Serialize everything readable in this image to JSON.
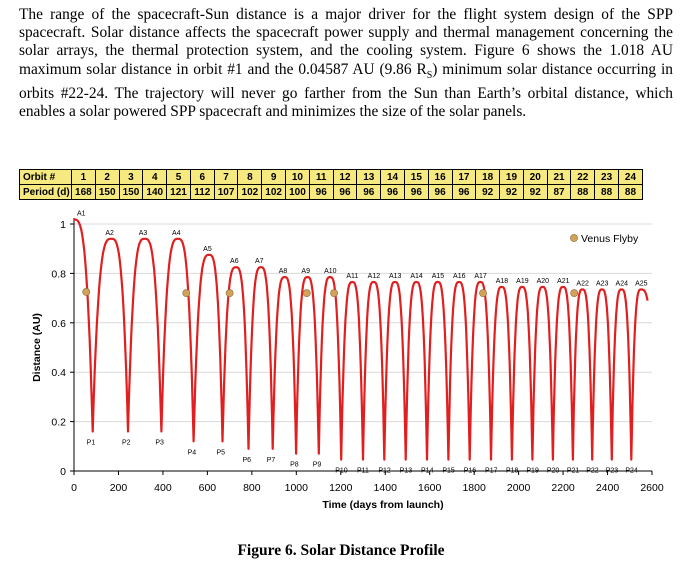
{
  "paragraph": {
    "before_subscript": "The range of the spacecraft-Sun distance is a major driver for the flight system design of the SPP spacecraft. Solar distance affects the spacecraft power supply and thermal management concerning the solar arrays, the thermal protection system, and the cooling system. Figure 6 shows the 1.018 AU maximum solar distance in orbit #1 and the 0.04587 AU (9.86 R",
    "subscript": "S",
    "after_subscript": ") minimum solar distance occurring in orbits #22-24. The trajectory will never go farther from the Sun than Earth’s orbital distance, which enables a solar powered SPP spacecraft and minimizes the size of the solar panels."
  },
  "orbit_table": {
    "row1_label": "Orbit #",
    "row2_label": "Period (d)",
    "orbits": [
      "1",
      "2",
      "3",
      "4",
      "5",
      "6",
      "7",
      "8",
      "9",
      "10",
      "11",
      "12",
      "13",
      "14",
      "15",
      "16",
      "17",
      "18",
      "19",
      "20",
      "21",
      "22",
      "23",
      "24"
    ],
    "periods": [
      "168",
      "150",
      "150",
      "140",
      "121",
      "112",
      "107",
      "102",
      "102",
      "100",
      "96",
      "96",
      "96",
      "96",
      "96",
      "96",
      "96",
      "92",
      "92",
      "92",
      "87",
      "88",
      "88",
      "88"
    ]
  },
  "chart_data": {
    "type": "line",
    "xlabel": "Time (days from launch)",
    "ylabel": "Distance (AU)",
    "xlim": [
      0,
      2600
    ],
    "ylim": [
      0,
      1.0
    ],
    "x_ticks": [
      "0",
      "200",
      "400",
      "600",
      "800",
      "1000",
      "1200",
      "1400",
      "1600",
      "1800",
      "2000",
      "2200",
      "2400",
      "2600"
    ],
    "y_ticks": [
      "0",
      "0.2",
      "0.4",
      "0.6",
      "0.8",
      "1"
    ],
    "grid": true,
    "legend_position": "top-right",
    "legend": [
      "Venus Flyby"
    ],
    "colors": {
      "trajectory": "#e02020",
      "grid": "#d9d9d9",
      "flyby": "#d4a15a",
      "table_fill": "#f6e97f"
    },
    "aphelia": [
      {
        "label": "A1",
        "x": 0,
        "y": 1.018
      },
      {
        "label": "A2",
        "x": 168,
        "y": 0.94
      },
      {
        "label": "A3",
        "x": 318,
        "y": 0.94
      },
      {
        "label": "A4",
        "x": 468,
        "y": 0.94
      },
      {
        "label": "A5",
        "x": 608,
        "y": 0.875
      },
      {
        "label": "A6",
        "x": 729,
        "y": 0.825
      },
      {
        "label": "A7",
        "x": 841,
        "y": 0.825
      },
      {
        "label": "A8",
        "x": 948,
        "y": 0.785
      },
      {
        "label": "A9",
        "x": 1050,
        "y": 0.785
      },
      {
        "label": "A10",
        "x": 1152,
        "y": 0.785
      },
      {
        "label": "A11",
        "x": 1252,
        "y": 0.765
      },
      {
        "label": "A12",
        "x": 1348,
        "y": 0.765
      },
      {
        "label": "A13",
        "x": 1444,
        "y": 0.765
      },
      {
        "label": "A14",
        "x": 1540,
        "y": 0.765
      },
      {
        "label": "A15",
        "x": 1636,
        "y": 0.765
      },
      {
        "label": "A16",
        "x": 1732,
        "y": 0.765
      },
      {
        "label": "A17",
        "x": 1828,
        "y": 0.765
      },
      {
        "label": "A18",
        "x": 1924,
        "y": 0.745
      },
      {
        "label": "A19",
        "x": 2016,
        "y": 0.745
      },
      {
        "label": "A20",
        "x": 2108,
        "y": 0.745
      },
      {
        "label": "A21",
        "x": 2200,
        "y": 0.745
      },
      {
        "label": "A22",
        "x": 2287,
        "y": 0.735
      },
      {
        "label": "A23",
        "x": 2375,
        "y": 0.735
      },
      {
        "label": "A24",
        "x": 2463,
        "y": 0.735
      },
      {
        "label": "A25",
        "x": 2551,
        "y": 0.735
      }
    ],
    "perihelia": [
      {
        "label": "P1",
        "x": 84,
        "y": 0.16
      },
      {
        "label": "P2",
        "x": 243,
        "y": 0.16
      },
      {
        "label": "P3",
        "x": 393,
        "y": 0.16
      },
      {
        "label": "P4",
        "x": 538,
        "y": 0.12
      },
      {
        "label": "P5",
        "x": 668,
        "y": 0.12
      },
      {
        "label": "P6",
        "x": 785,
        "y": 0.09
      },
      {
        "label": "P7",
        "x": 894,
        "y": 0.09
      },
      {
        "label": "P8",
        "x": 999,
        "y": 0.07
      },
      {
        "label": "P9",
        "x": 1101,
        "y": 0.07
      },
      {
        "label": "P10",
        "x": 1202,
        "y": 0.046
      },
      {
        "label": "P11",
        "x": 1300,
        "y": 0.046
      },
      {
        "label": "P12",
        "x": 1396,
        "y": 0.046
      },
      {
        "label": "P13",
        "x": 1492,
        "y": 0.046
      },
      {
        "label": "P14",
        "x": 1588,
        "y": 0.046
      },
      {
        "label": "P15",
        "x": 1684,
        "y": 0.046
      },
      {
        "label": "P16",
        "x": 1780,
        "y": 0.046
      },
      {
        "label": "P17",
        "x": 1876,
        "y": 0.046
      },
      {
        "label": "P18",
        "x": 1970,
        "y": 0.046
      },
      {
        "label": "P19",
        "x": 2062,
        "y": 0.046
      },
      {
        "label": "P20",
        "x": 2154,
        "y": 0.046
      },
      {
        "label": "P21",
        "x": 2244,
        "y": 0.046
      },
      {
        "label": "P22",
        "x": 2331,
        "y": 0.046
      },
      {
        "label": "P23",
        "x": 2419,
        "y": 0.046
      },
      {
        "label": "P24",
        "x": 2507,
        "y": 0.046
      }
    ],
    "end_point": {
      "x": 2580,
      "y": 0.69
    },
    "venus_flybys": [
      {
        "x": 55,
        "y": 0.725
      },
      {
        "x": 505,
        "y": 0.72
      },
      {
        "x": 700,
        "y": 0.72
      },
      {
        "x": 1047,
        "y": 0.72
      },
      {
        "x": 1170,
        "y": 0.72
      },
      {
        "x": 1840,
        "y": 0.72
      },
      {
        "x": 2250,
        "y": 0.72
      }
    ]
  },
  "caption": "Figure 6.  Solar Distance Profile"
}
